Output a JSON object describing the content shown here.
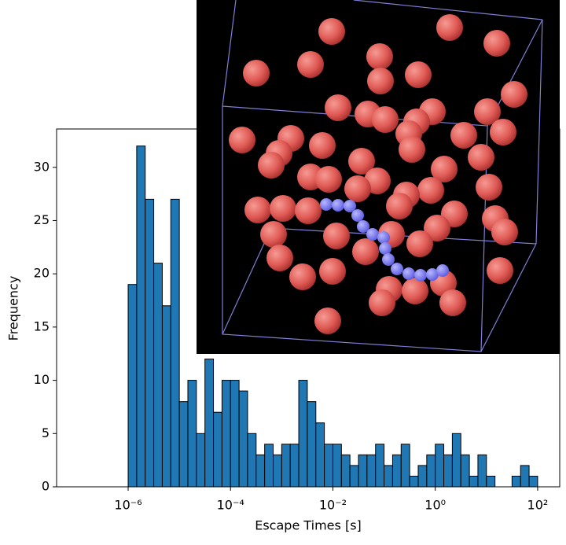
{
  "chart_data": {
    "type": "histogram",
    "xlabel": "Escape Times [s]",
    "ylabel": "Frequency",
    "color": "#1f77b4",
    "edgecolor": "#000000",
    "xscale": "log",
    "xlim": [
      4e-08,
      270
    ],
    "ylim": [
      0,
      33.6
    ],
    "xticks": [
      {
        "value": 1e-06,
        "label": "10⁻⁶"
      },
      {
        "value": 0.0001,
        "label": "10⁻⁴"
      },
      {
        "value": 0.01,
        "label": "10⁻²"
      },
      {
        "value": 1,
        "label": "10⁰"
      },
      {
        "value": 100,
        "label": "10²"
      }
    ],
    "yticks": [
      0,
      5,
      10,
      15,
      20,
      25,
      30
    ],
    "bins": [
      1e-06,
      1.468e-06,
      2.154e-06,
      3.162e-06,
      4.642e-06,
      6.813e-06,
      1e-05,
      1.468e-05,
      2.154e-05,
      3.162e-05,
      4.642e-05,
      6.813e-05,
      0.0001,
      0.0001468,
      0.0002154,
      0.0003162,
      0.0004642,
      0.0006813,
      0.001,
      0.001468,
      0.002154,
      0.003162,
      0.004642,
      0.006813,
      0.01,
      0.01468,
      0.02154,
      0.03162,
      0.04642,
      0.06813,
      0.1,
      0.1468,
      0.2154,
      0.3162,
      0.4642,
      0.6813,
      1,
      1.468,
      2.154,
      3.162,
      4.642,
      6.813,
      10,
      14.68,
      21.54,
      31.62,
      46.42,
      68.13,
      100
    ],
    "counts": [
      19,
      32,
      27,
      21,
      17,
      27,
      8,
      10,
      5,
      12,
      7,
      10,
      10,
      9,
      5,
      3,
      4,
      3,
      4,
      4,
      10,
      8,
      6,
      4,
      4,
      3,
      2,
      3,
      3,
      4,
      2,
      3,
      4,
      1,
      2,
      3,
      4,
      3,
      5,
      3,
      1,
      3,
      1,
      0,
      0,
      1,
      2,
      1
    ]
  }
}
